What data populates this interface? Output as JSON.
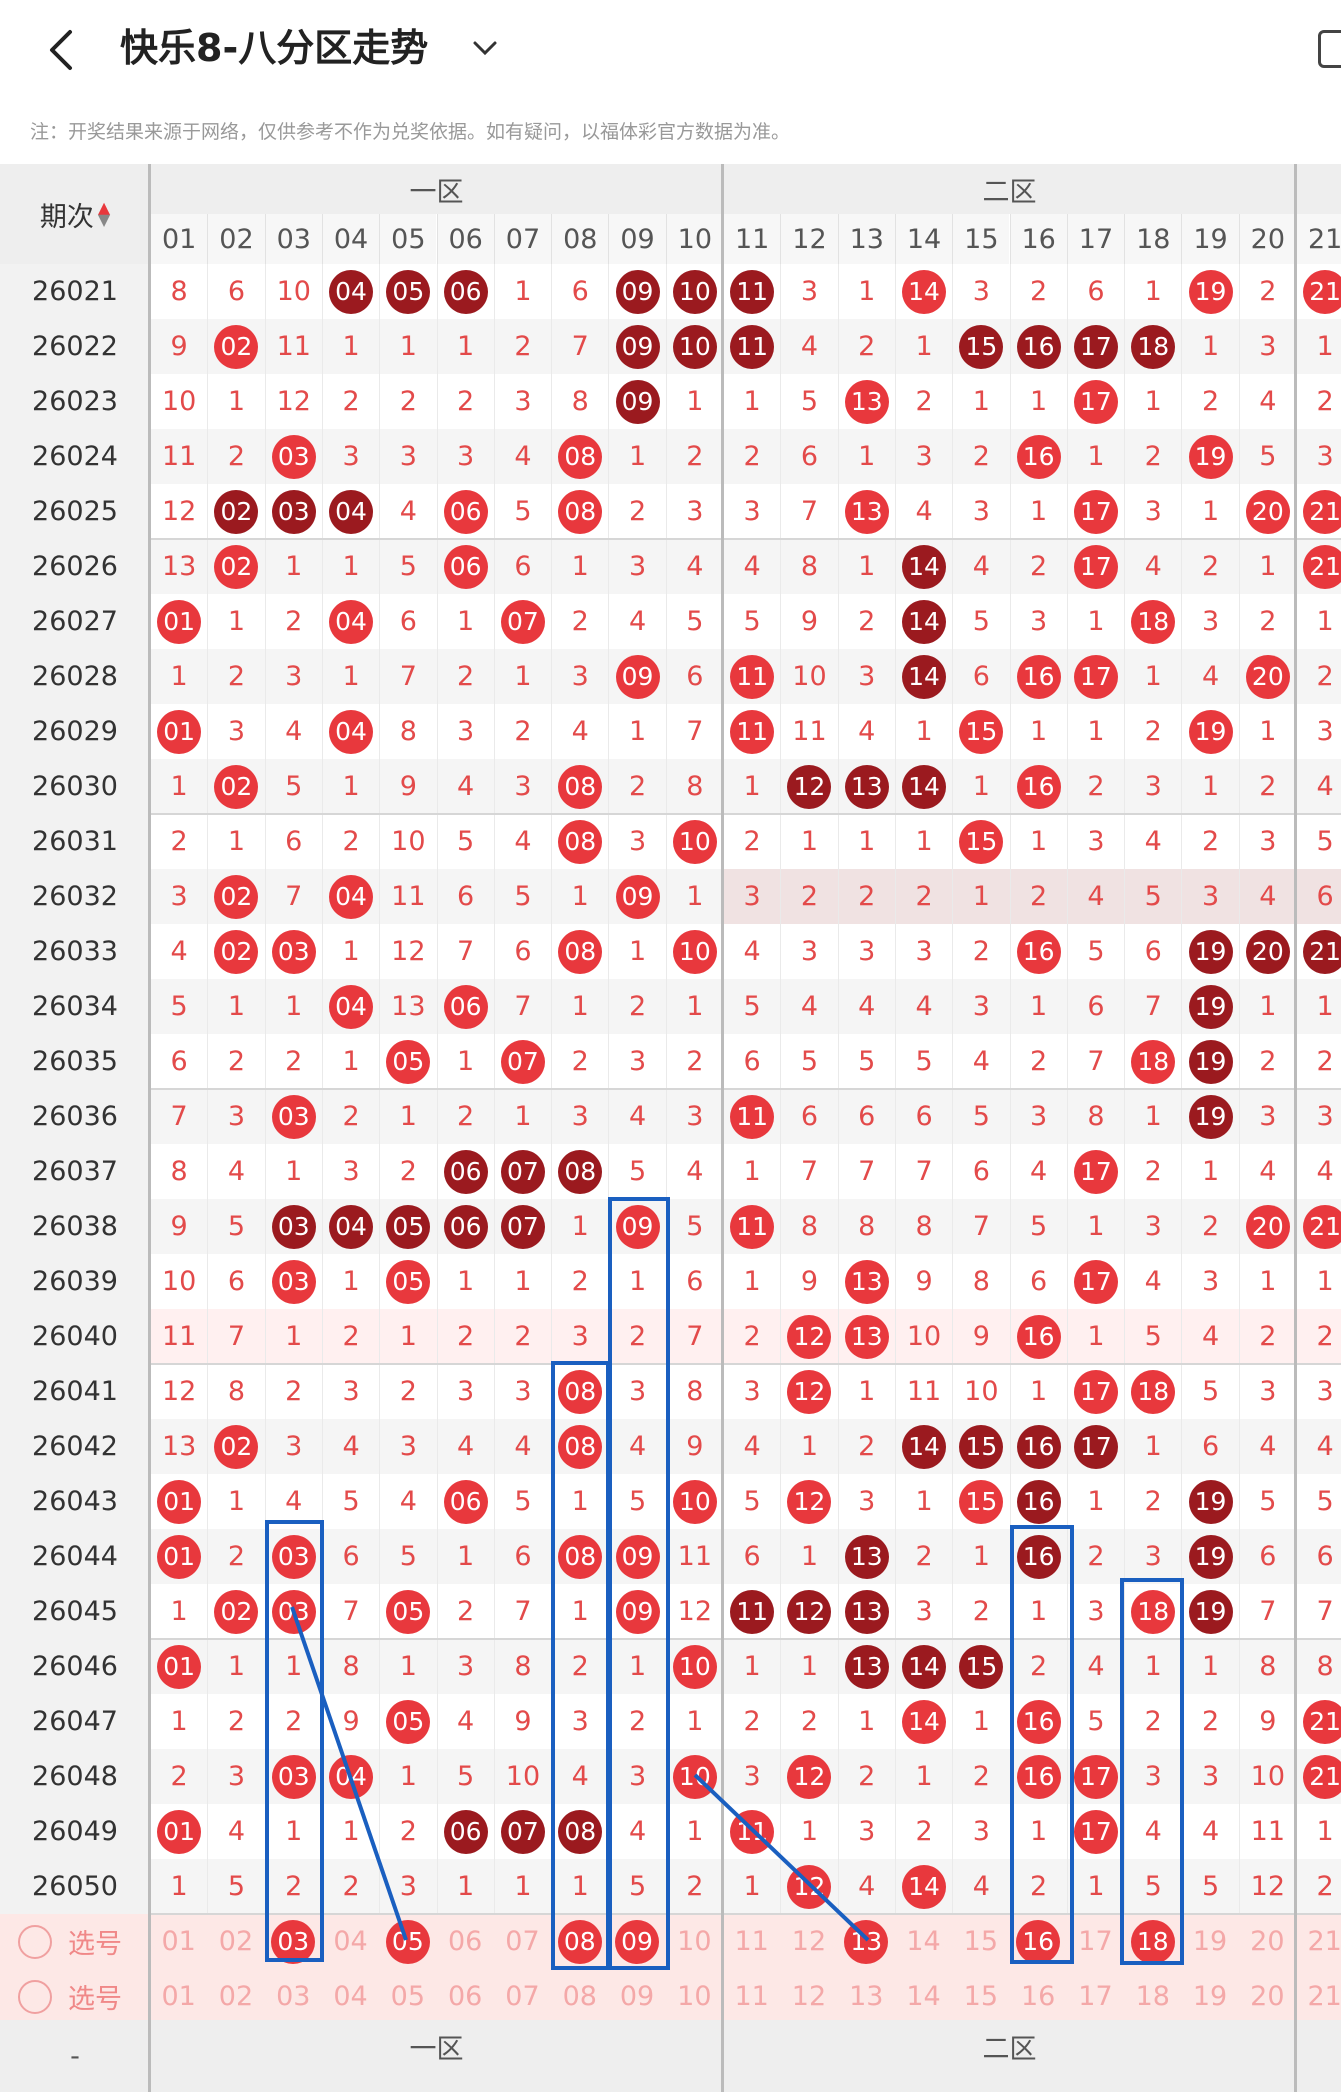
{
  "header": {
    "title": "快乐8-八分区走势",
    "notice": "注：开奖结果来源于网络，仅供参考不作为兑奖依据。如有疑问，以福体彩官方数据为准。"
  },
  "table": {
    "period_header": "期次",
    "zones": [
      "一区",
      "二区"
    ],
    "columns": [
      "01",
      "02",
      "03",
      "04",
      "05",
      "06",
      "07",
      "08",
      "09",
      "10",
      "11",
      "12",
      "13",
      "14",
      "15",
      "16",
      "17",
      "18",
      "19",
      "20",
      "21"
    ],
    "rows": [
      {
        "period": "26021",
        "cells": [
          "8",
          "6",
          "10",
          "04d",
          "05d",
          "06d",
          "1",
          "6",
          "09d",
          "10d",
          "11d",
          "3",
          "1",
          "14",
          "3",
          "2",
          "6",
          "1",
          "19",
          "2",
          "21"
        ]
      },
      {
        "period": "26022",
        "cells": [
          "9",
          "02",
          "11",
          "1",
          "1",
          "1",
          "2",
          "7",
          "09d",
          "10d",
          "11d",
          "4",
          "2",
          "1",
          "15d",
          "16d",
          "17d",
          "18d",
          "1",
          "3",
          "1"
        ]
      },
      {
        "period": "26023",
        "cells": [
          "10",
          "1",
          "12",
          "2",
          "2",
          "2",
          "3",
          "8",
          "09d",
          "1",
          "1",
          "5",
          "13",
          "2",
          "1",
          "1",
          "17",
          "1",
          "2",
          "4",
          "2"
        ]
      },
      {
        "period": "26024",
        "cells": [
          "11",
          "2",
          "03",
          "3",
          "3",
          "3",
          "4",
          "08",
          "1",
          "2",
          "2",
          "6",
          "1",
          "3",
          "2",
          "16",
          "1",
          "2",
          "19",
          "5",
          "3"
        ]
      },
      {
        "period": "26025",
        "cells": [
          "12",
          "02d",
          "03d",
          "04d",
          "4",
          "06",
          "5",
          "08",
          "2",
          "3",
          "3",
          "7",
          "13",
          "4",
          "3",
          "1",
          "17",
          "3",
          "1",
          "20",
          "21"
        ]
      },
      {
        "period": "26026",
        "cells": [
          "13",
          "02",
          "1",
          "1",
          "5",
          "06",
          "6",
          "1",
          "3",
          "4",
          "4",
          "8",
          "1",
          "14d",
          "4",
          "2",
          "17",
          "4",
          "2",
          "1",
          "21"
        ]
      },
      {
        "period": "26027",
        "cells": [
          "01",
          "1",
          "2",
          "04",
          "6",
          "1",
          "07",
          "2",
          "4",
          "5",
          "5",
          "9",
          "2",
          "14d",
          "5",
          "3",
          "1",
          "18",
          "3",
          "2",
          "1"
        ]
      },
      {
        "period": "26028",
        "cells": [
          "1",
          "2",
          "3",
          "1",
          "7",
          "2",
          "1",
          "3",
          "09",
          "6",
          "11",
          "10",
          "3",
          "14d",
          "6",
          "16",
          "17",
          "1",
          "4",
          "20",
          "2"
        ]
      },
      {
        "period": "26029",
        "cells": [
          "01",
          "3",
          "4",
          "04",
          "8",
          "3",
          "2",
          "4",
          "1",
          "7",
          "11",
          "11",
          "4",
          "1",
          "15",
          "1",
          "1",
          "2",
          "19",
          "1",
          "3"
        ]
      },
      {
        "period": "26030",
        "cells": [
          "1",
          "02",
          "5",
          "1",
          "9",
          "4",
          "3",
          "08",
          "2",
          "8",
          "1",
          "12d",
          "13d",
          "14d",
          "1",
          "16",
          "2",
          "3",
          "1",
          "2",
          "4"
        ]
      },
      {
        "period": "26031",
        "cells": [
          "2",
          "1",
          "6",
          "2",
          "10",
          "5",
          "4",
          "08",
          "3",
          "10",
          "2",
          "1",
          "1",
          "1",
          "15",
          "1",
          "3",
          "4",
          "2",
          "3",
          "5"
        ]
      },
      {
        "period": "26032",
        "cells": [
          "3",
          "02",
          "7",
          "04",
          "11",
          "6",
          "5",
          "1",
          "09",
          "1",
          "3",
          "2",
          "2",
          "2",
          "1",
          "2",
          "4",
          "5",
          "3",
          "4",
          "6"
        ]
      },
      {
        "period": "26033",
        "cells": [
          "4",
          "02",
          "03",
          "1",
          "12",
          "7",
          "6",
          "08",
          "1",
          "10",
          "4",
          "3",
          "3",
          "3",
          "2",
          "16",
          "5",
          "6",
          "19d",
          "20d",
          "21d"
        ]
      },
      {
        "period": "26034",
        "cells": [
          "5",
          "1",
          "1",
          "04",
          "13",
          "06",
          "7",
          "1",
          "2",
          "1",
          "5",
          "4",
          "4",
          "4",
          "3",
          "1",
          "6",
          "7",
          "19d",
          "1",
          "1"
        ]
      },
      {
        "period": "26035",
        "cells": [
          "6",
          "2",
          "2",
          "1",
          "05",
          "1",
          "07",
          "2",
          "3",
          "2",
          "6",
          "5",
          "5",
          "5",
          "4",
          "2",
          "7",
          "18",
          "19d",
          "2",
          "2"
        ]
      },
      {
        "period": "26036",
        "cells": [
          "7",
          "3",
          "03",
          "2",
          "1",
          "2",
          "1",
          "3",
          "4",
          "3",
          "11",
          "6",
          "6",
          "6",
          "5",
          "3",
          "8",
          "1",
          "19d",
          "3",
          "3"
        ]
      },
      {
        "period": "26037",
        "cells": [
          "8",
          "4",
          "1",
          "3",
          "2",
          "06d",
          "07d",
          "08d",
          "5",
          "4",
          "1",
          "7",
          "7",
          "7",
          "6",
          "4",
          "17",
          "2",
          "1",
          "4",
          "4"
        ]
      },
      {
        "period": "26038",
        "cells": [
          "9",
          "5",
          "03d",
          "04d",
          "05d",
          "06d",
          "07d",
          "1",
          "09",
          "5",
          "11",
          "8",
          "8",
          "8",
          "7",
          "5",
          "1",
          "3",
          "2",
          "20",
          "21"
        ]
      },
      {
        "period": "26039",
        "cells": [
          "10",
          "6",
          "03",
          "1",
          "05",
          "1",
          "1",
          "2",
          "1",
          "6",
          "1",
          "9",
          "13",
          "9",
          "8",
          "6",
          "17",
          "4",
          "3",
          "1",
          "1"
        ]
      },
      {
        "period": "26040",
        "cells": [
          "11",
          "7",
          "1",
          "2",
          "1",
          "2",
          "2",
          "3",
          "2",
          "7",
          "2",
          "12",
          "13",
          "10",
          "9",
          "16",
          "1",
          "5",
          "4",
          "2",
          "2"
        ]
      },
      {
        "period": "26041",
        "cells": [
          "12",
          "8",
          "2",
          "3",
          "2",
          "3",
          "3",
          "08",
          "3",
          "8",
          "3",
          "12",
          "1",
          "11",
          "10",
          "1",
          "17",
          "18",
          "5",
          "3",
          "3"
        ]
      },
      {
        "period": "26042",
        "cells": [
          "13",
          "02",
          "3",
          "4",
          "3",
          "4",
          "4",
          "08",
          "4",
          "9",
          "4",
          "1",
          "2",
          "14d",
          "15d",
          "16d",
          "17d",
          "1",
          "6",
          "4",
          "4"
        ]
      },
      {
        "period": "26043",
        "cells": [
          "01",
          "1",
          "4",
          "5",
          "4",
          "06",
          "5",
          "1",
          "5",
          "10",
          "5",
          "12",
          "3",
          "1",
          "15",
          "16d",
          "1",
          "2",
          "19d",
          "5",
          "5"
        ]
      },
      {
        "period": "26044",
        "cells": [
          "01",
          "2",
          "03",
          "6",
          "5",
          "1",
          "6",
          "08",
          "09",
          "11",
          "6",
          "1",
          "13d",
          "2",
          "1",
          "16d",
          "2",
          "3",
          "19d",
          "6",
          "6"
        ]
      },
      {
        "period": "26045",
        "cells": [
          "1",
          "02",
          "03",
          "7",
          "05",
          "2",
          "7",
          "1",
          "09",
          "12",
          "11d",
          "12d",
          "13d",
          "3",
          "2",
          "1",
          "3",
          "18",
          "19d",
          "7",
          "7"
        ]
      },
      {
        "period": "26046",
        "cells": [
          "01",
          "1",
          "1",
          "8",
          "1",
          "3",
          "8",
          "2",
          "1",
          "10",
          "1",
          "1",
          "13d",
          "14d",
          "15d",
          "2",
          "4",
          "1",
          "1",
          "8",
          "8"
        ]
      },
      {
        "period": "26047",
        "cells": [
          "1",
          "2",
          "2",
          "9",
          "05",
          "4",
          "9",
          "3",
          "2",
          "1",
          "2",
          "2",
          "1",
          "14",
          "1",
          "16",
          "5",
          "2",
          "2",
          "9",
          "21"
        ]
      },
      {
        "period": "26048",
        "cells": [
          "2",
          "3",
          "03",
          "04",
          "1",
          "5",
          "10",
          "4",
          "3",
          "10",
          "3",
          "12",
          "2",
          "1",
          "2",
          "16",
          "17",
          "3",
          "3",
          "10",
          "21"
        ]
      },
      {
        "period": "26049",
        "cells": [
          "01",
          "4",
          "1",
          "1",
          "2",
          "06d",
          "07d",
          "08d",
          "4",
          "1",
          "11",
          "1",
          "3",
          "2",
          "3",
          "1",
          "17",
          "4",
          "4",
          "11",
          "1"
        ]
      },
      {
        "period": "26050",
        "cells": [
          "1",
          "5",
          "2",
          "2",
          "3",
          "1",
          "1",
          "1",
          "5",
          "2",
          "1",
          "12",
          "4",
          "14",
          "4",
          "2",
          "1",
          "5",
          "5",
          "12",
          "2"
        ]
      }
    ],
    "selection_rows": [
      {
        "label": "选号",
        "cells": [
          "01",
          "02",
          "03r",
          "04",
          "05r",
          "06",
          "07",
          "08r",
          "09r",
          "10",
          "11",
          "12",
          "13r",
          "14",
          "15",
          "16r",
          "17",
          "18r",
          "19",
          "20",
          "21"
        ]
      },
      {
        "label": "选号",
        "cells": [
          "01",
          "02",
          "03",
          "04",
          "05",
          "06",
          "07",
          "08",
          "09",
          "10",
          "11",
          "12",
          "13",
          "14",
          "15",
          "16",
          "17",
          "18",
          "19",
          "20",
          "21"
        ]
      }
    ],
    "footer_period": "-"
  }
}
